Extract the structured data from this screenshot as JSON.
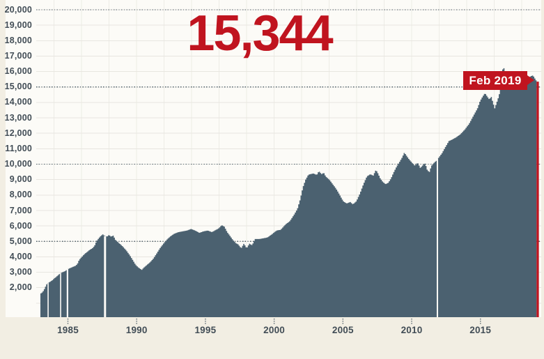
{
  "headline": {
    "value": "15,344"
  },
  "callout": {
    "label": "Feb 2019"
  },
  "colors": {
    "accent_red": "#c0141f",
    "bar": "#4b6170",
    "page_bg": "#f2eee3",
    "panel_bg": "#fcfbf7",
    "grid_faint_h": "#e8e6e0",
    "grid_faint_v": "#edece6",
    "dotted_line": "#4e5f68",
    "axis_text": "#424d56",
    "tick_dots": "#5f6d75"
  },
  "y_axis": {
    "tick_values": [
      20000,
      19000,
      18000,
      17000,
      16000,
      15000,
      14000,
      13000,
      12000,
      11000,
      10000,
      9000,
      8000,
      7000,
      6000,
      5000,
      4000,
      3000,
      2000
    ],
    "tick_labels": [
      "20,000",
      "19,000",
      "18,000",
      "17,000",
      "16,000",
      "15,000",
      "14,000",
      "13,000",
      "12,000",
      "11,000",
      "10,000",
      "9,000",
      "8,000",
      "7,000",
      "6,000",
      "5,000",
      "4,000",
      "3,000",
      "2,000"
    ]
  },
  "x_axis": {
    "tick_years": [
      1985,
      1990,
      1995,
      2000,
      2005,
      2010,
      2015
    ],
    "tick_labels": [
      "1985",
      "1990",
      "1995",
      "2000",
      "2005",
      "2010",
      "2015"
    ]
  },
  "chart_data": {
    "type": "bar",
    "title": "",
    "headline_value": 15344,
    "highlighted_point": {
      "label": "Feb 2019",
      "value": 15344
    },
    "x_start_year": 1983.0,
    "x_end_year": 2019.083,
    "points_per_year": 12,
    "ylim": [
      0,
      20600
    ],
    "grid_on": true,
    "dotted_levels": [
      5000,
      10000,
      15000,
      20000
    ],
    "gap_marker_years": [
      1983.56,
      1984.47,
      1984.97,
      1987.7,
      2011.87
    ],
    "anchors": [
      [
        1983.0,
        1630
      ],
      [
        1983.1,
        1700
      ],
      [
        1983.2,
        1820
      ],
      [
        1983.3,
        2000
      ],
      [
        1983.4,
        2200
      ],
      [
        1983.5,
        2300
      ],
      [
        1983.66,
        2380
      ],
      [
        1983.86,
        2500
      ],
      [
        1983.96,
        2600
      ],
      [
        1984.11,
        2700
      ],
      [
        1984.26,
        2820
      ],
      [
        1984.42,
        2950
      ],
      [
        1984.57,
        3000
      ],
      [
        1984.77,
        3080
      ],
      [
        1984.87,
        3150
      ],
      [
        1985.07,
        3250
      ],
      [
        1985.33,
        3350
      ],
      [
        1985.48,
        3400
      ],
      [
        1985.63,
        3500
      ],
      [
        1985.78,
        3800
      ],
      [
        1985.93,
        3950
      ],
      [
        1986.13,
        4150
      ],
      [
        1986.34,
        4300
      ],
      [
        1986.54,
        4450
      ],
      [
        1986.74,
        4550
      ],
      [
        1986.89,
        4700
      ],
      [
        1987.04,
        5000
      ],
      [
        1987.2,
        5200
      ],
      [
        1987.35,
        5350
      ],
      [
        1987.5,
        5450
      ],
      [
        1987.6,
        5380
      ],
      [
        1987.8,
        5300
      ],
      [
        1987.95,
        5420
      ],
      [
        1988.1,
        5300
      ],
      [
        1988.26,
        5380
      ],
      [
        1988.41,
        5100
      ],
      [
        1988.66,
        4900
      ],
      [
        1988.91,
        4700
      ],
      [
        1989.17,
        4450
      ],
      [
        1989.42,
        4150
      ],
      [
        1989.67,
        3800
      ],
      [
        1989.87,
        3500
      ],
      [
        1990.03,
        3350
      ],
      [
        1990.18,
        3250
      ],
      [
        1990.33,
        3150
      ],
      [
        1990.48,
        3300
      ],
      [
        1990.68,
        3450
      ],
      [
        1990.94,
        3650
      ],
      [
        1991.19,
        3900
      ],
      [
        1991.44,
        4250
      ],
      [
        1991.69,
        4600
      ],
      [
        1991.95,
        4900
      ],
      [
        1992.2,
        5150
      ],
      [
        1992.45,
        5350
      ],
      [
        1992.7,
        5500
      ],
      [
        1993.01,
        5600
      ],
      [
        1993.31,
        5650
      ],
      [
        1993.61,
        5700
      ],
      [
        1993.92,
        5800
      ],
      [
        1994.22,
        5700
      ],
      [
        1994.52,
        5550
      ],
      [
        1994.83,
        5650
      ],
      [
        1995.13,
        5700
      ],
      [
        1995.43,
        5600
      ],
      [
        1995.74,
        5750
      ],
      [
        1995.94,
        5850
      ],
      [
        1996.14,
        6050
      ],
      [
        1996.34,
        5950
      ],
      [
        1996.54,
        5600
      ],
      [
        1996.75,
        5350
      ],
      [
        1996.95,
        5100
      ],
      [
        1997.15,
        4900
      ],
      [
        1997.35,
        4800
      ],
      [
        1997.56,
        4550
      ],
      [
        1997.76,
        4850
      ],
      [
        1997.96,
        4550
      ],
      [
        1998.16,
        4850
      ],
      [
        1998.36,
        4750
      ],
      [
        1998.56,
        5150
      ],
      [
        1998.87,
        5150
      ],
      [
        1999.17,
        5200
      ],
      [
        1999.47,
        5250
      ],
      [
        1999.78,
        5450
      ],
      [
        2000.13,
        5700
      ],
      [
        2000.43,
        5750
      ],
      [
        2000.79,
        6100
      ],
      [
        2001.09,
        6300
      ],
      [
        2001.39,
        6700
      ],
      [
        2001.65,
        7100
      ],
      [
        2001.85,
        7700
      ],
      [
        2002.05,
        8500
      ],
      [
        2002.25,
        9000
      ],
      [
        2002.45,
        9320
      ],
      [
        2002.81,
        9400
      ],
      [
        2003.06,
        9300
      ],
      [
        2003.21,
        9550
      ],
      [
        2003.41,
        9350
      ],
      [
        2003.56,
        9450
      ],
      [
        2003.71,
        9200
      ],
      [
        2003.97,
        9000
      ],
      [
        2004.22,
        8700
      ],
      [
        2004.47,
        8400
      ],
      [
        2004.73,
        8000
      ],
      [
        2004.98,
        7600
      ],
      [
        2005.23,
        7450
      ],
      [
        2005.49,
        7550
      ],
      [
        2005.69,
        7400
      ],
      [
        2005.94,
        7600
      ],
      [
        2006.2,
        8100
      ],
      [
        2006.45,
        8700
      ],
      [
        2006.7,
        9200
      ],
      [
        2006.95,
        9350
      ],
      [
        2007.16,
        9250
      ],
      [
        2007.36,
        9630
      ],
      [
        2007.51,
        9400
      ],
      [
        2007.66,
        9100
      ],
      [
        2007.86,
        8850
      ],
      [
        2008.06,
        8700
      ],
      [
        2008.27,
        8800
      ],
      [
        2008.47,
        9100
      ],
      [
        2008.67,
        9500
      ],
      [
        2008.87,
        9850
      ],
      [
        2009.08,
        10150
      ],
      [
        2009.28,
        10450
      ],
      [
        2009.43,
        10750
      ],
      [
        2009.58,
        10550
      ],
      [
        2009.78,
        10300
      ],
      [
        2009.98,
        10100
      ],
      [
        2010.19,
        9900
      ],
      [
        2010.39,
        10100
      ],
      [
        2010.59,
        9750
      ],
      [
        2010.79,
        9950
      ],
      [
        2010.94,
        10050
      ],
      [
        2011.1,
        9600
      ],
      [
        2011.25,
        9500
      ],
      [
        2011.4,
        9900
      ],
      [
        2011.6,
        10100
      ],
      [
        2011.8,
        10250
      ],
      [
        2011.91,
        10400
      ],
      [
        2012.16,
        10700
      ],
      [
        2012.41,
        11100
      ],
      [
        2012.67,
        11500
      ],
      [
        2012.92,
        11600
      ],
      [
        2013.22,
        11750
      ],
      [
        2013.52,
        11950
      ],
      [
        2013.83,
        12250
      ],
      [
        2014.13,
        12600
      ],
      [
        2014.43,
        13100
      ],
      [
        2014.74,
        13600
      ],
      [
        2014.94,
        14100
      ],
      [
        2015.14,
        14400
      ],
      [
        2015.29,
        14600
      ],
      [
        2015.44,
        14400
      ],
      [
        2015.6,
        14200
      ],
      [
        2015.75,
        14350
      ],
      [
        2015.9,
        13900
      ],
      [
        2016.0,
        13620
      ],
      [
        2016.15,
        14000
      ],
      [
        2016.3,
        14400
      ],
      [
        2016.45,
        15000
      ],
      [
        2016.56,
        16100
      ],
      [
        2016.66,
        16240
      ],
      [
        2016.76,
        15800
      ],
      [
        2016.91,
        15500
      ],
      [
        2017.11,
        15600
      ],
      [
        2017.32,
        15700
      ],
      [
        2017.52,
        15600
      ],
      [
        2017.72,
        15500
      ],
      [
        2017.87,
        15250
      ],
      [
        2018.03,
        14900
      ],
      [
        2018.18,
        15100
      ],
      [
        2018.33,
        15400
      ],
      [
        2018.48,
        15600
      ],
      [
        2018.63,
        15700
      ],
      [
        2018.78,
        15750
      ],
      [
        2018.88,
        15600
      ],
      [
        2018.98,
        15450
      ],
      [
        2019.08,
        15344
      ]
    ]
  }
}
